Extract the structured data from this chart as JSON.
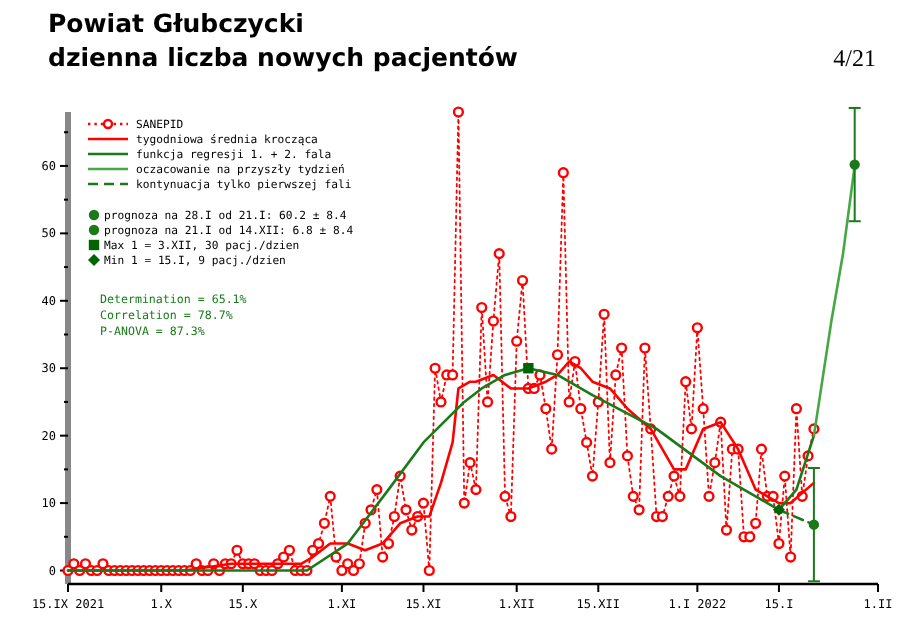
{
  "chart_data": {
    "type": "line",
    "title": "Powiat Głubczycki",
    "subtitle": "dzienna liczba nowych pacjentów",
    "annotations": [
      "4/21",
      "Determination = 65.1%",
      "Correlation = 78.7%",
      "P-ANOVA = 87.3%"
    ],
    "xlim": [
      "2021-09-15",
      "2022-02-01"
    ],
    "xticks": [
      {
        "value": "2021-09-15",
        "label": "15.IX 2021"
      },
      {
        "value": "2021-10-01",
        "label": "1.X"
      },
      {
        "value": "2021-10-15",
        "label": "15.X"
      },
      {
        "value": "2021-11-01",
        "label": "1.XI"
      },
      {
        "value": "2021-11-15",
        "label": "15.XI"
      },
      {
        "value": "2021-12-01",
        "label": "1.XII"
      },
      {
        "value": "2021-12-15",
        "label": "15.XII"
      },
      {
        "value": "2022-01-01",
        "label": "1.I 2022"
      },
      {
        "value": "2022-01-15",
        "label": "15.I"
      },
      {
        "value": "2022-02-01",
        "label": "1.II"
      }
    ],
    "ylim": [
      -2,
      68
    ],
    "yticks": [
      0,
      {
        "value": 5,
        "label": null
      },
      10,
      {
        "value": 15,
        "label": null
      },
      20,
      {
        "value": 25,
        "label": null
      },
      30,
      {
        "value": 35,
        "label": null
      },
      40,
      {
        "value": 45,
        "label": null
      },
      50,
      {
        "value": 55,
        "label": null
      },
      60,
      {
        "value": 65,
        "label": null
      }
    ],
    "grid": false,
    "legend": "top left",
    "series": [
      {
        "name": "SANEPID",
        "color": "#ff0000",
        "marker": "circle",
        "line_style": "dotted",
        "x": [
          "2021-09-15",
          "2021-09-16",
          "2021-09-17",
          "2021-09-18",
          "2021-09-19",
          "2021-09-20",
          "2021-09-21",
          "2021-09-22",
          "2021-09-23",
          "2021-09-24",
          "2021-09-25",
          "2021-09-26",
          "2021-09-27",
          "2021-09-28",
          "2021-09-29",
          "2021-09-30",
          "2021-10-01",
          "2021-10-02",
          "2021-10-03",
          "2021-10-04",
          "2021-10-05",
          "2021-10-06",
          "2021-10-07",
          "2021-10-08",
          "2021-10-09",
          "2021-10-10",
          "2021-10-11",
          "2021-10-12",
          "2021-10-13",
          "2021-10-14",
          "2021-10-15",
          "2021-10-16",
          "2021-10-17",
          "2021-10-18",
          "2021-10-19",
          "2021-10-20",
          "2021-10-21",
          "2021-10-22",
          "2021-10-23",
          "2021-10-24",
          "2021-10-25",
          "2021-10-26",
          "2021-10-27",
          "2021-10-28",
          "2021-10-29",
          "2021-10-30",
          "2021-10-31",
          "2021-11-01",
          "2021-11-02",
          "2021-11-03",
          "2021-11-04",
          "2021-11-05",
          "2021-11-06",
          "2021-11-07",
          "2021-11-08",
          "2021-11-09",
          "2021-11-10",
          "2021-11-11",
          "2021-11-12",
          "2021-11-13",
          "2021-11-14",
          "2021-11-15",
          "2021-11-16",
          "2021-11-17",
          "2021-11-18",
          "2021-11-19",
          "2021-11-20",
          "2021-11-21",
          "2021-11-22",
          "2021-11-23",
          "2021-11-24",
          "2021-11-25",
          "2021-11-26",
          "2021-11-27",
          "2021-11-28",
          "2021-11-29",
          "2021-11-30",
          "2021-12-01",
          "2021-12-02",
          "2021-12-03",
          "2021-12-04",
          "2021-12-05",
          "2021-12-06",
          "2021-12-07",
          "2021-12-08",
          "2021-12-09",
          "2021-12-10",
          "2021-12-11",
          "2021-12-12",
          "2021-12-13",
          "2021-12-14",
          "2021-12-15",
          "2021-12-16",
          "2021-12-17",
          "2021-12-18",
          "2021-12-19",
          "2021-12-20",
          "2021-12-21",
          "2021-12-22",
          "2021-12-23",
          "2021-12-24",
          "2021-12-25",
          "2021-12-26",
          "2021-12-27",
          "2021-12-28",
          "2021-12-29",
          "2021-12-30",
          "2021-12-31",
          "2022-01-01",
          "2022-01-02",
          "2022-01-03",
          "2022-01-04",
          "2022-01-05",
          "2022-01-06",
          "2022-01-07",
          "2022-01-08",
          "2022-01-09",
          "2022-01-10",
          "2022-01-11",
          "2022-01-12",
          "2022-01-13",
          "2022-01-14",
          "2022-01-15",
          "2022-01-16",
          "2022-01-17",
          "2022-01-18",
          "2022-01-19",
          "2022-01-20",
          "2022-01-21"
        ],
        "values": [
          0,
          1,
          0,
          1,
          0,
          0,
          1,
          0,
          0,
          0,
          0,
          0,
          0,
          0,
          0,
          0,
          0,
          0,
          0,
          0,
          0,
          0,
          1,
          0,
          0,
          1,
          0,
          1,
          1,
          3,
          1,
          1,
          1,
          0,
          0,
          0,
          1,
          2,
          3,
          0,
          0,
          0,
          3,
          4,
          7,
          11,
          2,
          0,
          1,
          0,
          1,
          7,
          9,
          12,
          2,
          4,
          8,
          14,
          9,
          6,
          8,
          10,
          0,
          30,
          25,
          29,
          29,
          68,
          10,
          16,
          12,
          39,
          25,
          37,
          47,
          11,
          8,
          34,
          43,
          27,
          27,
          29,
          24,
          18,
          32,
          59,
          25,
          31,
          24,
          19,
          14,
          25,
          38,
          16,
          29,
          33,
          17,
          11,
          9,
          33,
          21,
          8,
          8,
          11,
          14,
          11,
          28,
          21,
          36,
          24,
          11,
          16,
          22,
          6,
          18,
          18,
          5,
          5,
          7,
          18,
          11,
          11,
          4,
          14,
          2,
          24,
          11,
          17,
          21
        ]
      },
      {
        "name": "tygodniowa średnia krocząca",
        "color": "#ff0000",
        "marker": "none",
        "line_style": "solid",
        "x": [
          "2021-09-15",
          "2021-09-25",
          "2021-10-05",
          "2021-10-13",
          "2021-10-17",
          "2021-10-21",
          "2021-10-25",
          "2021-10-27",
          "2021-10-30",
          "2021-11-02",
          "2021-11-05",
          "2021-11-08",
          "2021-11-11",
          "2021-11-14",
          "2021-11-16",
          "2021-11-18",
          "2021-11-20",
          "2021-11-21",
          "2021-11-23",
          "2021-11-24",
          "2021-11-27",
          "2021-11-30",
          "2021-12-03",
          "2021-12-06",
          "2021-12-08",
          "2021-12-10",
          "2021-12-12",
          "2021-12-14",
          "2021-12-17",
          "2021-12-20",
          "2021-12-24",
          "2021-12-28",
          "2021-12-30",
          "2022-01-02",
          "2022-01-05",
          "2022-01-08",
          "2022-01-11",
          "2022-01-15",
          "2022-01-17",
          "2022-01-21"
        ],
        "values": [
          0,
          0,
          0,
          1,
          1,
          1,
          1,
          2,
          4,
          4,
          3,
          4,
          7,
          8,
          8,
          13,
          19,
          27,
          28,
          28,
          29,
          27,
          27,
          28,
          29,
          31,
          30,
          28,
          27,
          24,
          21,
          15,
          15,
          21,
          22,
          18,
          12,
          10,
          10,
          13
        ]
      },
      {
        "name": "funkcja regresji 1. + 2. fala",
        "color": "#1a7a1a",
        "marker": "none",
        "line_style": "solid",
        "x": [
          "2021-09-15",
          "2021-10-20",
          "2021-10-26",
          "2021-11-02",
          "2021-11-09",
          "2021-11-15",
          "2021-11-22",
          "2021-11-25",
          "2021-11-29",
          "2021-12-03",
          "2021-12-08",
          "2021-12-14",
          "2021-12-25",
          "2022-01-05",
          "2022-01-15",
          "2022-01-18",
          "2022-01-21"
        ],
        "values": [
          0,
          0,
          0,
          4,
          12,
          19,
          25,
          27,
          29,
          30,
          29,
          26,
          21,
          14,
          9,
          12,
          20
        ]
      },
      {
        "name": "oczacowanie na przyszły tydzień",
        "color": "#45a845",
        "marker": "none",
        "line_style": "solid",
        "x": [
          "2022-01-21",
          "2022-01-24",
          "2022-01-26",
          "2022-01-28"
        ],
        "values": [
          20,
          37,
          47,
          60
        ]
      },
      {
        "name": "kontynuacja tylko pierwszej fali",
        "color": "#1a7a1a",
        "marker": "none",
        "line_style": "dashed",
        "x": [
          "2022-01-15",
          "2022-01-21"
        ],
        "values": [
          9,
          6.8
        ]
      },
      {
        "name": "prognoza na 28.I od 21.I: 60.2 ± 8.4",
        "type": "scatter",
        "color": "#1a7a1a",
        "marker": "circle",
        "x": [
          "2022-01-28"
        ],
        "values": [
          60.2
        ],
        "errors": [
          8.4
        ]
      },
      {
        "name": "prognoza na 21.I od 14.XII: 6.8 ± 8.4",
        "type": "scatter",
        "color": "#1a7a1a",
        "marker": "circle",
        "x": [
          "2022-01-21"
        ],
        "values": [
          6.8
        ],
        "errors": [
          8.4
        ]
      },
      {
        "name": "Max 1 = 3.XII, 30 pacj./dzien",
        "type": "scatter",
        "color": "#006400",
        "marker": "square",
        "x": [
          "2021-12-03"
        ],
        "values": [
          30
        ]
      },
      {
        "name": "Min 1 = 15.I, 9 pacj./dzien",
        "type": "scatter",
        "color": "#006400",
        "marker": "diamond",
        "x": [
          "2022-01-15"
        ],
        "values": [
          9
        ]
      }
    ]
  }
}
